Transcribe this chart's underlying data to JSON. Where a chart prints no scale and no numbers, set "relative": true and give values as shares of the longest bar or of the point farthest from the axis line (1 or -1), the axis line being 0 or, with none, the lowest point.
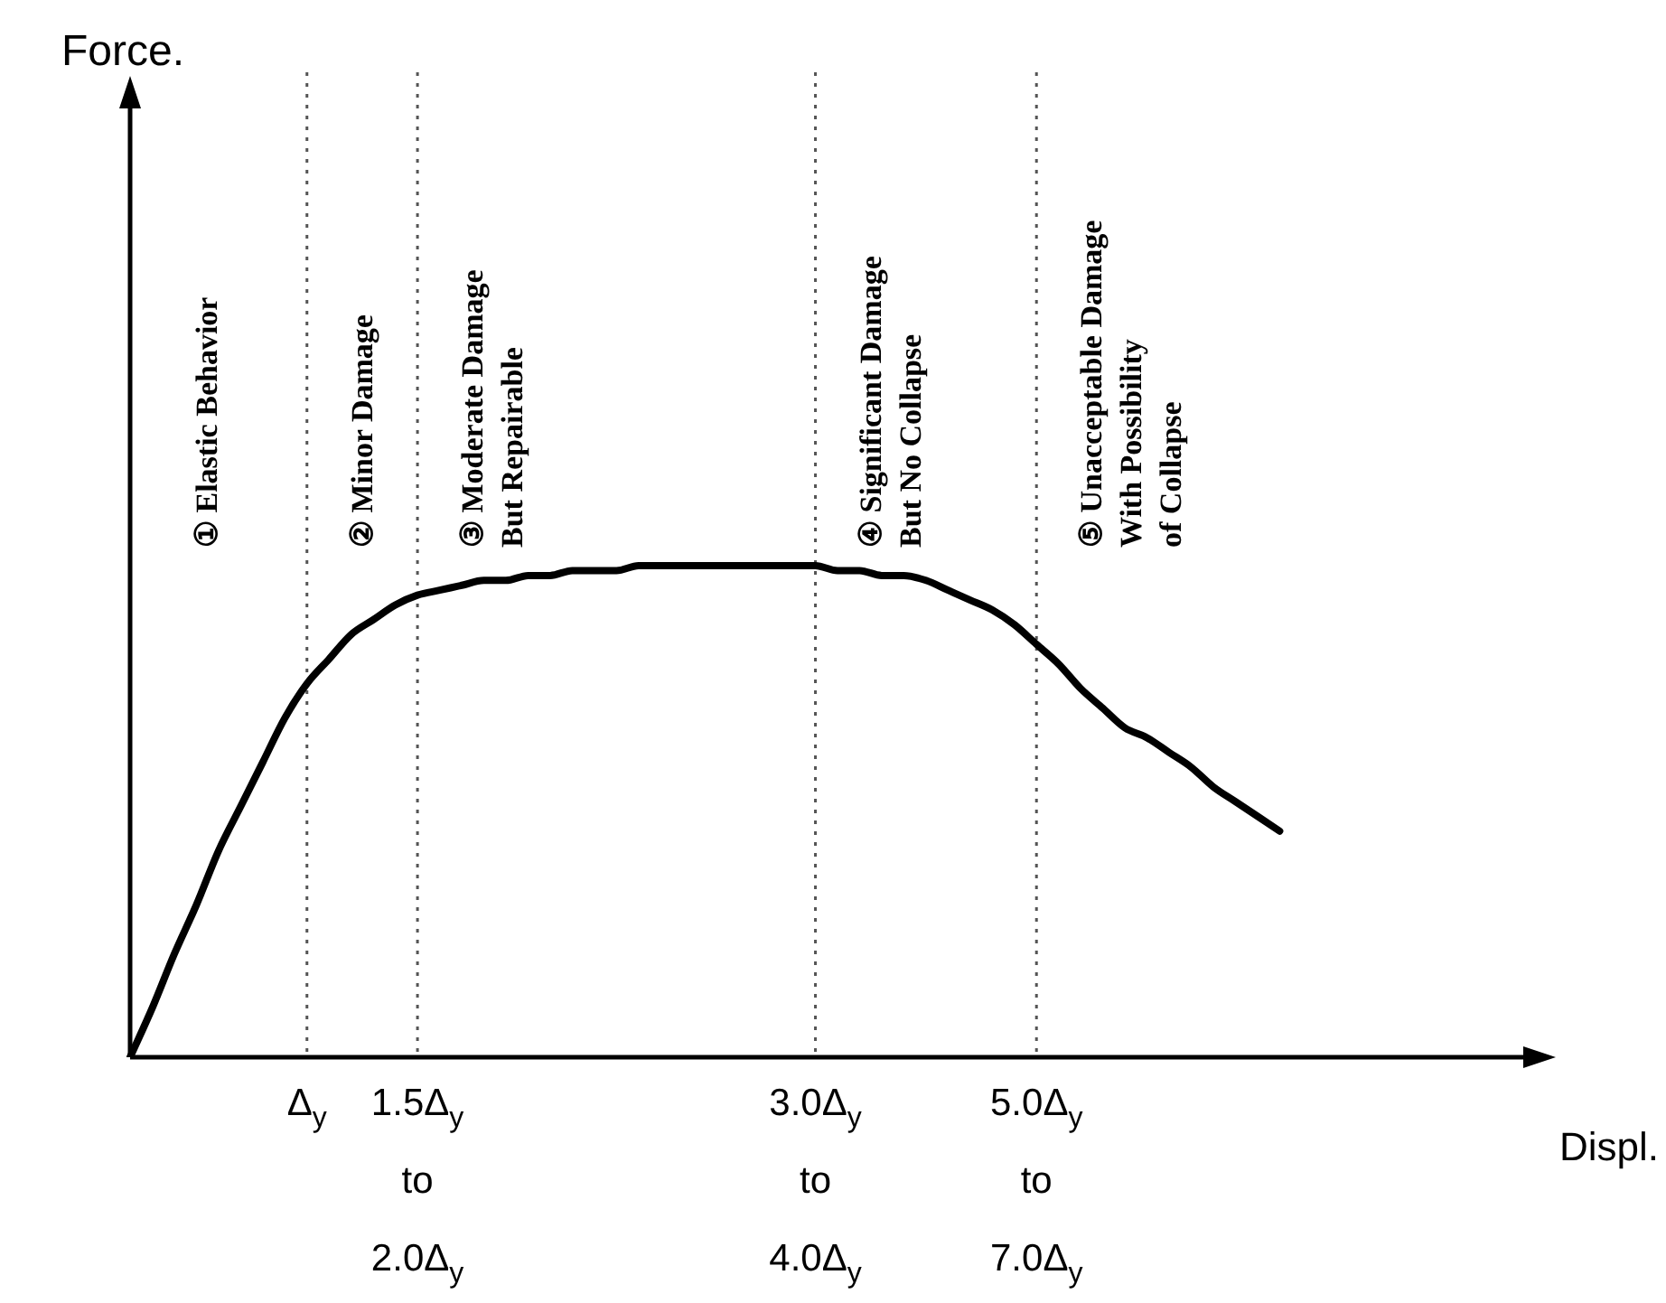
{
  "chart_data": {
    "type": "line",
    "relative": true,
    "xlabel": "Displ.",
    "categories": [
      null,
      null,
      null,
      null,
      null,
      null,
      null,
      null,
      "Δ$_{y}$",
      null,
      null,
      null,
      null,
      "1.5Δ$_{y}$\nto\n2.0Δ$_{y}$",
      null,
      null,
      null,
      null,
      null,
      null,
      null,
      null,
      null,
      null,
      null,
      null,
      null,
      null,
      null,
      null,
      null,
      "3.0Δ$_{y}$\nto\n4.0Δ$_{y}$",
      null,
      null,
      null,
      null,
      null,
      null,
      null,
      null,
      null,
      "5.0Δ$_{y}$\nto\n7.0Δ$_{y}$",
      null,
      null,
      null,
      null,
      null,
      null,
      null,
      null,
      null,
      null,
      null,
      null,
      null,
      null,
      null,
      null,
      null,
      null,
      null,
      null,
      null,
      null,
      null
    ],
    "series": [
      {
        "color": "#000000",
        "values": [
          0,
          0.1,
          0.21,
          0.31,
          0.42,
          0.51,
          0.6,
          0.69,
          0.76,
          0.81,
          0.86,
          0.89,
          0.92,
          0.94,
          0.95,
          0.96,
          0.97,
          0.97,
          0.98,
          0.98,
          0.99,
          0.99,
          0.99,
          1,
          1,
          1,
          1,
          1,
          1,
          1,
          1,
          1,
          0.99,
          0.99,
          0.98,
          0.98,
          0.97,
          0.95,
          0.93,
          0.91,
          0.88,
          0.84,
          0.8,
          0.75,
          0.71,
          0.67,
          0.65,
          0.62,
          0.59,
          0.55,
          0.52,
          0.49,
          0.46,
          null,
          null,
          null,
          null,
          null,
          null,
          null,
          null,
          null,
          null,
          null,
          null
        ]
      }
    ],
    "ref_lines": [
      {
        "axis": "x",
        "value": "Δ$_{y}$",
        "color": "#555555",
        "line_style": "dotted"
      },
      {
        "axis": "x",
        "value": "1.5Δ$_{y}$\nto\n2.0Δ$_{y}$",
        "color": "#555555",
        "line_style": "dotted"
      },
      {
        "axis": "x",
        "value": "3.0Δ$_{y}$\nto\n4.0Δ$_{y}$",
        "color": "#555555",
        "line_style": "dotted"
      },
      {
        "axis": "x",
        "value": "5.0Δ$_{y}$\nto\n7.0Δ$_{y}$",
        "color": "#555555",
        "line_style": "dotted"
      }
    ],
    "annotations": [
      "Force.",
      "① Elastic Behavior",
      "② Minor Damage",
      "③ Moderate Damage\nBut Repairable",
      "④ Significant Damage\nBut No Collapse",
      "⑤ Unacceptable Damage\nWith Possibility\nof Collapse"
    ],
    "marker": "none",
    "line_style": "solid",
    "legend": false
  }
}
